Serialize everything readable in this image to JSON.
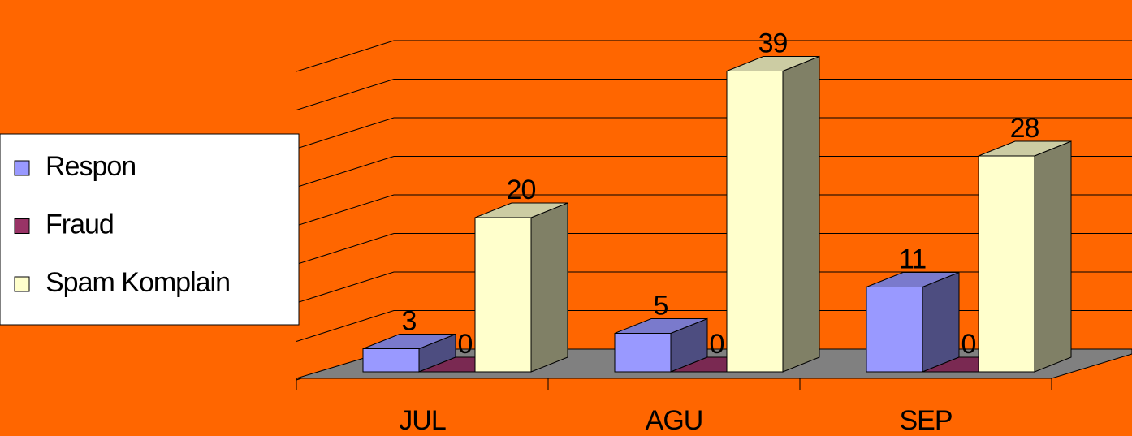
{
  "chart_data": {
    "type": "bar3d",
    "categories": [
      "JUL",
      "AGU",
      "SEP"
    ],
    "series": [
      {
        "name": "Respon",
        "color": "#9999ff",
        "values": [
          3,
          5,
          11
        ]
      },
      {
        "name": "Fraud",
        "color": "#993366",
        "values": [
          0,
          0,
          0
        ]
      },
      {
        "name": "Spam Komplain",
        "color": "#ffffcc",
        "values": [
          20,
          39,
          28
        ]
      }
    ],
    "ylim": [
      0,
      40
    ],
    "yticks": [
      0,
      5,
      10,
      15,
      20,
      25,
      30,
      35,
      40
    ],
    "grid": true,
    "legend": "left"
  }
}
